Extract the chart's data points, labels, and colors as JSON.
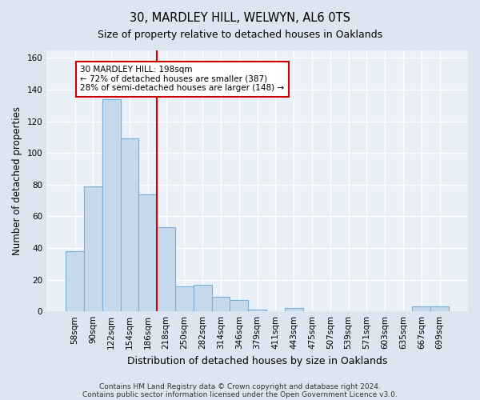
{
  "title1": "30, MARDLEY HILL, WELWYN, AL6 0TS",
  "title2": "Size of property relative to detached houses in Oaklands",
  "xlabel": "Distribution of detached houses by size in Oaklands",
  "ylabel": "Number of detached properties",
  "bar_labels": [
    "58sqm",
    "90sqm",
    "122sqm",
    "154sqm",
    "186sqm",
    "218sqm",
    "250sqm",
    "282sqm",
    "314sqm",
    "346sqm",
    "379sqm",
    "411sqm",
    "443sqm",
    "475sqm",
    "507sqm",
    "539sqm",
    "571sqm",
    "603sqm",
    "635sqm",
    "667sqm",
    "699sqm"
  ],
  "bar_values": [
    38,
    79,
    134,
    109,
    74,
    53,
    16,
    17,
    9,
    7,
    1,
    0,
    2,
    0,
    0,
    0,
    0,
    0,
    0,
    3,
    3
  ],
  "bar_color": "#c6d9ec",
  "bar_edge_color": "#7aaed6",
  "vline_x": 4.5,
  "vline_color": "#cc0000",
  "annotation_text": "30 MARDLEY HILL: 198sqm\n← 72% of detached houses are smaller (387)\n28% of semi-detached houses are larger (148) →",
  "annotation_box_color": "#ffffff",
  "annotation_box_edge": "#cc0000",
  "ylim": [
    0,
    165
  ],
  "yticks": [
    0,
    20,
    40,
    60,
    80,
    100,
    120,
    140,
    160
  ],
  "footer1": "Contains HM Land Registry data © Crown copyright and database right 2024.",
  "footer2": "Contains public sector information licensed under the Open Government Licence v3.0.",
  "bg_color": "#dce6f0",
  "plot_bg_color": "#eaf0f8"
}
